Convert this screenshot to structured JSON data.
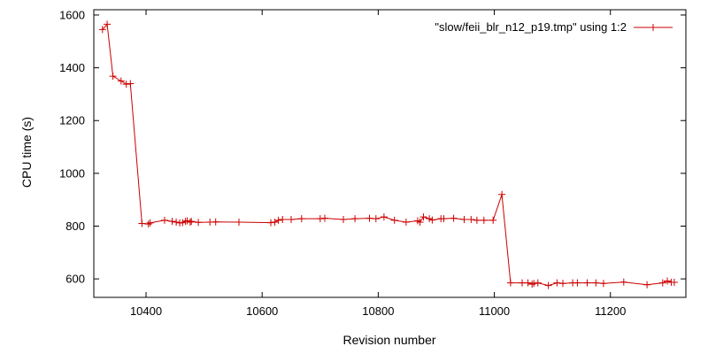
{
  "chart_data": {
    "type": "line",
    "title": "",
    "xlabel": "Revision number",
    "ylabel": "CPU time (s)",
    "xlim": [
      10310,
      11330
    ],
    "ylim": [
      530,
      1620
    ],
    "x_ticks": [
      10400,
      10600,
      10800,
      11000,
      11200
    ],
    "y_ticks": [
      600,
      800,
      1000,
      1200,
      1400,
      1600
    ],
    "grid": false,
    "legend_position": "top-right",
    "series_color": "#cc0000",
    "series": [
      {
        "name": "\"slow/feii_blr_n12_p19.tmp\" using 1:2",
        "marker": "plus",
        "points": [
          [
            10325,
            1545
          ],
          [
            10333,
            1565
          ],
          [
            10343,
            1368
          ],
          [
            10357,
            1350
          ],
          [
            10366,
            1338
          ],
          [
            10373,
            1340
          ],
          [
            10393,
            810
          ],
          [
            10404,
            808
          ],
          [
            10407,
            812
          ],
          [
            10432,
            822
          ],
          [
            10445,
            818
          ],
          [
            10452,
            815
          ],
          [
            10458,
            812
          ],
          [
            10463,
            813
          ],
          [
            10468,
            818
          ],
          [
            10471,
            820
          ],
          [
            10476,
            815
          ],
          [
            10478,
            818
          ],
          [
            10490,
            814
          ],
          [
            10510,
            815
          ],
          [
            10520,
            816
          ],
          [
            10560,
            815
          ],
          [
            10615,
            813
          ],
          [
            10622,
            815
          ],
          [
            10628,
            822
          ],
          [
            10635,
            825
          ],
          [
            10650,
            825
          ],
          [
            10668,
            828
          ],
          [
            10700,
            828
          ],
          [
            10708,
            830
          ],
          [
            10740,
            825
          ],
          [
            10760,
            828
          ],
          [
            10785,
            830
          ],
          [
            10796,
            828
          ],
          [
            10810,
            835
          ],
          [
            10828,
            822
          ],
          [
            10848,
            815
          ],
          [
            10868,
            820
          ],
          [
            10872,
            815
          ],
          [
            10878,
            835
          ],
          [
            10888,
            828
          ],
          [
            10893,
            823
          ],
          [
            10908,
            828
          ],
          [
            10913,
            828
          ],
          [
            10930,
            830
          ],
          [
            10948,
            825
          ],
          [
            10960,
            825
          ],
          [
            10970,
            822
          ],
          [
            10982,
            822
          ],
          [
            10998,
            822
          ],
          [
            11013,
            920
          ],
          [
            11028,
            585
          ],
          [
            11048,
            585
          ],
          [
            11058,
            585
          ],
          [
            11065,
            580
          ],
          [
            11068,
            583
          ],
          [
            11075,
            585
          ],
          [
            11093,
            575
          ],
          [
            11108,
            585
          ],
          [
            11118,
            583
          ],
          [
            11135,
            585
          ],
          [
            11143,
            585
          ],
          [
            11160,
            585
          ],
          [
            11175,
            585
          ],
          [
            11188,
            583
          ],
          [
            11223,
            588
          ],
          [
            11263,
            578
          ],
          [
            11290,
            585
          ],
          [
            11298,
            592
          ],
          [
            11305,
            587
          ],
          [
            11310,
            587
          ]
        ]
      }
    ]
  }
}
